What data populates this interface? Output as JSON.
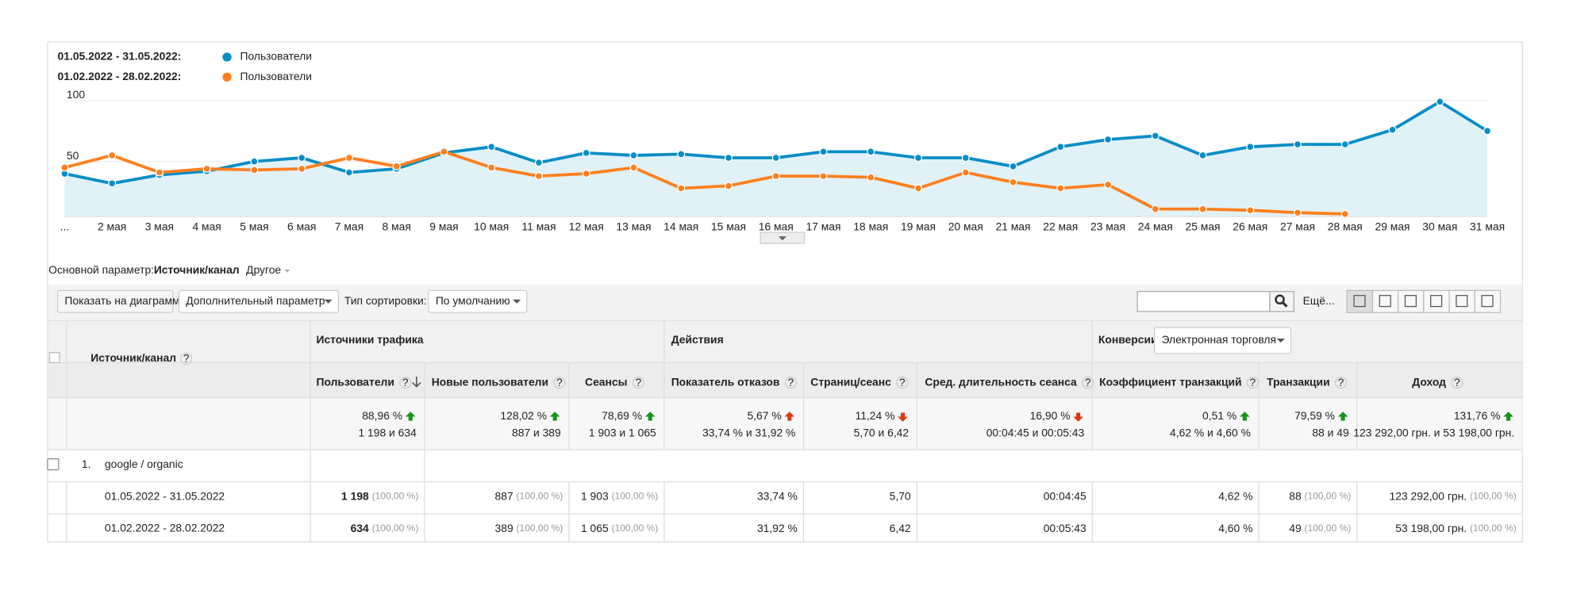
{
  "chart_data": {
    "type": "line",
    "categories": [
      "...",
      "2 мая",
      "3 мая",
      "4 мая",
      "5 мая",
      "6 мая",
      "7 мая",
      "8 мая",
      "9 мая",
      "10 мая",
      "11 мая",
      "12 мая",
      "13 мая",
      "14 мая",
      "15 мая",
      "16 мая",
      "17 мая",
      "18 мая",
      "19 мая",
      "20 мая",
      "21 мая",
      "22 мая",
      "23 мая",
      "24 мая",
      "25 мая",
      "26 мая",
      "27 мая",
      "28 мая",
      "29 мая",
      "30 мая",
      "31 мая"
    ],
    "series": [
      {
        "name": "Пользователи",
        "period": "01.05.2022 - 31.05.2022:",
        "color": "#058dc7",
        "area": "#e1f1f8",
        "values": [
          40,
          32,
          39,
          42,
          50,
          53,
          41,
          44,
          57,
          62,
          49,
          57,
          55,
          56,
          53,
          53,
          58,
          58,
          53,
          53,
          46,
          62,
          68,
          71,
          55,
          62,
          64,
          64,
          76,
          99,
          75
        ]
      },
      {
        "name": "Пользователи",
        "period": "01.02.2022 - 28.02.2022:",
        "color": "#ff7f1e",
        "values": [
          45,
          55,
          41,
          44,
          43,
          44,
          53,
          46,
          58,
          45,
          38,
          40,
          45,
          28,
          30,
          38,
          38,
          37,
          28,
          41,
          33,
          28,
          31,
          11,
          11,
          10,
          8,
          7,
          null,
          null,
          null
        ]
      }
    ],
    "ylim": [
      5,
      106
    ],
    "yticks": [
      50,
      100
    ],
    "grid": true
  },
  "toolbar": {
    "primary_label": "Основной параметр:",
    "primary_value": "Источник/канал",
    "other": "Другое",
    "plot_button": "Показать на диаграмме",
    "secondary": "Дополнительный параметр",
    "sort_label": "Тип сортировки:",
    "sort_value": "По умолчанию",
    "more": "Ещё..."
  },
  "table": {
    "help": "?",
    "dimension": "Источник/канал",
    "groups": [
      "Источники трафика",
      "Действия",
      "Конверсии"
    ],
    "conversion_select": "Электронная торговля",
    "columns": [
      "Пользователи",
      "Новые пользователи",
      "Сеансы",
      "Показатель отказов",
      "Страниц/сеанс",
      "Сред. длительность сеанса",
      "Коэффициент транзакций",
      "Транзакции",
      "Доход"
    ],
    "summary": [
      {
        "change": "88,96 %",
        "trend": "up",
        "arrow_color": "#109618",
        "detail": "1 198 и 634"
      },
      {
        "change": "128,02 %",
        "trend": "up",
        "arrow_color": "#109618",
        "detail": "887 и 389"
      },
      {
        "change": "78,69 %",
        "trend": "up",
        "arrow_color": "#109618",
        "detail": "1 903 и 1 065"
      },
      {
        "change": "5,67 %",
        "trend": "up",
        "arrow_color": "#dc3912",
        "detail": "33,74 % и 31,92 %"
      },
      {
        "change": "11,24 %",
        "trend": "down",
        "arrow_color": "#dc3912",
        "detail": "5,70 и 6,42"
      },
      {
        "change": "16,90 %",
        "trend": "down",
        "arrow_color": "#dc3912",
        "detail": "00:04:45 и 00:05:43"
      },
      {
        "change": "0,51 %",
        "trend": "up",
        "arrow_color": "#109618",
        "detail": "4,62 % и 4,60 %"
      },
      {
        "change": "79,59 %",
        "trend": "up",
        "arrow_color": "#109618",
        "detail": "88 и 49"
      },
      {
        "change": "131,76 %",
        "trend": "up",
        "arrow_color": "#109618",
        "detail": "123 292,00 грн. и 53 198,00 грн."
      }
    ],
    "rows": [
      {
        "index": "1.",
        "name": "google / organic",
        "periods": [
          {
            "label": "01.05.2022 - 31.05.2022",
            "cells": [
              {
                "value": "1 198",
                "pct": "(100,00 %)"
              },
              {
                "value": "887",
                "pct": "(100,00 %)"
              },
              {
                "value": "1 903",
                "pct": "(100,00 %)"
              },
              {
                "value": "33,74 %"
              },
              {
                "value": "5,70"
              },
              {
                "value": "00:04:45"
              },
              {
                "value": "4,62 %"
              },
              {
                "value": "88",
                "pct": "(100,00 %)"
              },
              {
                "value": "123 292,00 грн.",
                "pct": "(100,00 %)"
              }
            ]
          },
          {
            "label": "01.02.2022 - 28.02.2022",
            "cells": [
              {
                "value": "634",
                "pct": "(100,00 %)"
              },
              {
                "value": "389",
                "pct": "(100,00 %)"
              },
              {
                "value": "1 065",
                "pct": "(100,00 %)"
              },
              {
                "value": "31,92 %"
              },
              {
                "value": "6,42"
              },
              {
                "value": "00:05:43"
              },
              {
                "value": "4,60 %"
              },
              {
                "value": "49",
                "pct": "(100,00 %)"
              },
              {
                "value": "53 198,00 грн.",
                "pct": "(100,00 %)"
              }
            ]
          }
        ]
      }
    ]
  }
}
